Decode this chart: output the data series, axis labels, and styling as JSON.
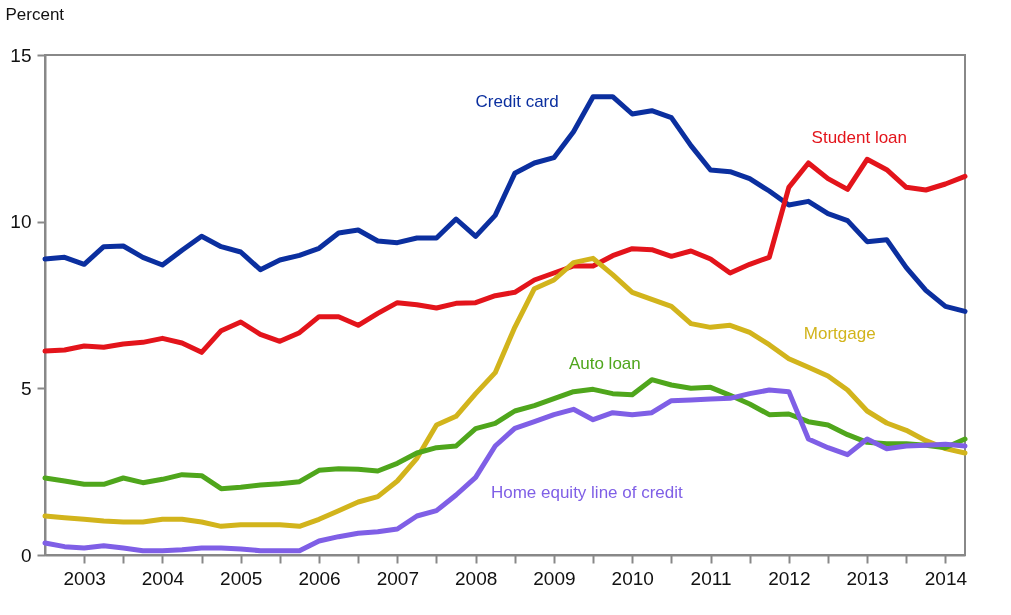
{
  "chart_data": {
    "type": "line",
    "ylabel": "Percent",
    "x": [
      2003,
      2003.25,
      2003.5,
      2003.75,
      2004,
      2004.25,
      2004.5,
      2004.75,
      2005,
      2005.25,
      2005.5,
      2005.75,
      2006,
      2006.25,
      2006.5,
      2006.75,
      2007,
      2007.25,
      2007.5,
      2007.75,
      2008,
      2008.25,
      2008.5,
      2008.75,
      2009,
      2009.25,
      2009.5,
      2009.75,
      2010,
      2010.25,
      2010.5,
      2010.75,
      2011,
      2011.25,
      2011.5,
      2011.75,
      2012,
      2012.25,
      2012.5,
      2012.75,
      2013,
      2013.25,
      2013.5,
      2013.75,
      2014,
      2014.25,
      2014.5,
      2014.75
    ],
    "series": [
      {
        "name": "Credit card",
        "color": "#0b2f9f",
        "values": [
          8.88,
          8.93,
          8.72,
          9.25,
          9.27,
          8.93,
          8.7,
          9.14,
          9.56,
          9.25,
          9.09,
          8.56,
          8.85,
          8.99,
          9.2,
          9.66,
          9.75,
          9.42,
          9.37,
          9.51,
          9.51,
          10.08,
          9.56,
          10.19,
          11.45,
          11.76,
          11.92,
          12.7,
          13.75,
          13.75,
          13.23,
          13.33,
          13.12,
          12.28,
          11.55,
          11.5,
          11.29,
          10.92,
          10.5,
          10.61,
          10.24,
          10.03,
          9.4,
          9.46,
          8.62,
          7.94,
          7.46,
          7.31
        ]
      },
      {
        "name": "Student loan",
        "color": "#e3141b",
        "values": [
          6.12,
          6.15,
          6.27,
          6.23,
          6.33,
          6.38,
          6.5,
          6.36,
          6.08,
          6.73,
          6.99,
          6.62,
          6.41,
          6.67,
          7.15,
          7.15,
          6.89,
          7.25,
          7.57,
          7.51,
          7.41,
          7.55,
          7.57,
          7.78,
          7.88,
          8.25,
          8.46,
          8.67,
          8.67,
          8.98,
          9.19,
          9.16,
          8.96,
          9.12,
          8.88,
          8.46,
          8.72,
          8.93,
          11.03,
          11.76,
          11.29,
          10.97,
          11.87,
          11.56,
          11.03,
          10.95,
          11.13,
          11.36
        ]
      },
      {
        "name": "Mortgage",
        "color": "#d2b41c",
        "values": [
          1.17,
          1.12,
          1.07,
          1.02,
          0.99,
          0.99,
          1.07,
          1.07,
          0.99,
          0.86,
          0.91,
          0.91,
          0.91,
          0.86,
          1.07,
          1.33,
          1.59,
          1.75,
          2.22,
          2.9,
          3.9,
          4.16,
          4.84,
          5.47,
          6.83,
          7.99,
          8.25,
          8.77,
          8.9,
          8.41,
          7.88,
          7.67,
          7.46,
          6.94,
          6.83,
          6.89,
          6.68,
          6.31,
          5.89,
          5.63,
          5.37,
          4.95,
          4.32,
          3.96,
          3.74,
          3.43,
          3.19,
          3.06
        ]
      },
      {
        "name": "Auto loan",
        "color": "#4fa61c",
        "values": [
          2.31,
          2.22,
          2.12,
          2.12,
          2.31,
          2.17,
          2.27,
          2.41,
          2.38,
          1.99,
          2.03,
          2.1,
          2.14,
          2.2,
          2.54,
          2.59,
          2.57,
          2.52,
          2.75,
          3.06,
          3.22,
          3.27,
          3.79,
          3.95,
          4.32,
          4.48,
          4.69,
          4.9,
          4.97,
          4.84,
          4.81,
          5.26,
          5.1,
          5.0,
          5.03,
          4.79,
          4.53,
          4.21,
          4.23,
          4.0,
          3.9,
          3.61,
          3.38,
          3.34,
          3.34,
          3.29,
          3.22,
          3.48
        ]
      },
      {
        "name": "Home equity line of credit",
        "color": "#7f5fe6",
        "values": [
          0.36,
          0.25,
          0.21,
          0.28,
          0.21,
          0.13,
          0.13,
          0.16,
          0.21,
          0.21,
          0.18,
          0.13,
          0.13,
          0.13,
          0.42,
          0.55,
          0.65,
          0.7,
          0.78,
          1.17,
          1.33,
          1.8,
          2.33,
          3.27,
          3.8,
          4.0,
          4.21,
          4.37,
          4.06,
          4.27,
          4.21,
          4.27,
          4.63,
          4.65,
          4.68,
          4.7,
          4.84,
          4.95,
          4.9,
          3.48,
          3.22,
          3.01,
          3.48,
          3.19,
          3.27,
          3.29,
          3.32,
          3.27
        ]
      }
    ],
    "xlim": [
      2003,
      2014.75
    ],
    "xticks": [
      {
        "value": 2003.5,
        "label": "2003"
      },
      {
        "value": 2004,
        "label": null
      },
      {
        "value": 2004.5,
        "label": "2004"
      },
      {
        "value": 2005,
        "label": null
      },
      {
        "value": 2005.5,
        "label": "2005"
      },
      {
        "value": 2006,
        "label": null
      },
      {
        "value": 2006.5,
        "label": "2006"
      },
      {
        "value": 2007,
        "label": null
      },
      {
        "value": 2007.5,
        "label": "2007"
      },
      {
        "value": 2008,
        "label": null
      },
      {
        "value": 2008.5,
        "label": "2008"
      },
      {
        "value": 2009,
        "label": null
      },
      {
        "value": 2009.5,
        "label": "2009"
      },
      {
        "value": 2010,
        "label": null
      },
      {
        "value": 2010.5,
        "label": "2010"
      },
      {
        "value": 2011,
        "label": null
      },
      {
        "value": 2011.5,
        "label": "2011"
      },
      {
        "value": 2012,
        "label": null
      },
      {
        "value": 2012.5,
        "label": "2012"
      },
      {
        "value": 2013,
        "label": null
      },
      {
        "value": 2013.5,
        "label": "2013"
      },
      {
        "value": 2014,
        "label": null
      },
      {
        "value": 2014.5,
        "label": "2014"
      }
    ],
    "ylim": [
      0,
      15
    ],
    "yticks": [
      0,
      5,
      10,
      15
    ],
    "grid": false,
    "legend": false,
    "marker": "none",
    "line_style": "solid"
  }
}
